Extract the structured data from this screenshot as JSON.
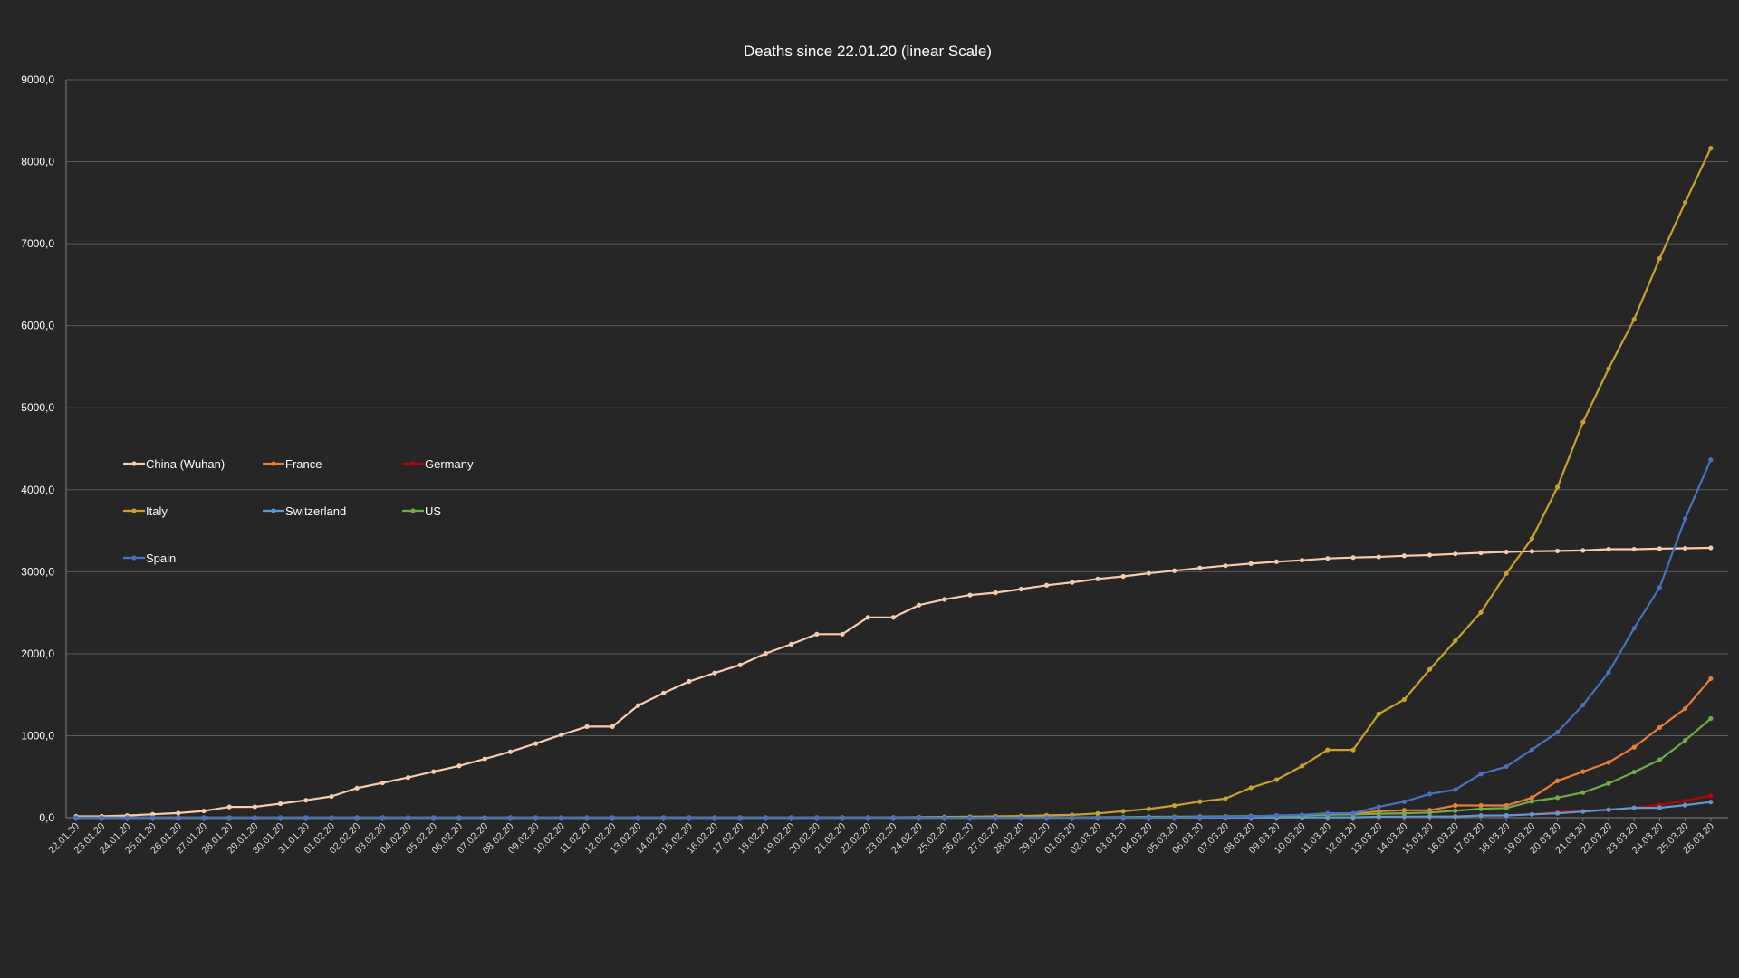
{
  "chart_data": {
    "type": "line",
    "title": "Deaths since 22.01.20 (linear Scale)",
    "xlabel": "",
    "ylabel": "",
    "ylim": [
      0,
      9000
    ],
    "yticks": [
      0,
      1000,
      2000,
      3000,
      4000,
      5000,
      6000,
      7000,
      8000,
      9000
    ],
    "ytick_labels": [
      "0,0",
      "1000,0",
      "2000,0",
      "3000,0",
      "4000,0",
      "5000,0",
      "6000,0",
      "7000,0",
      "8000,0",
      "9000,0"
    ],
    "grid": true,
    "legend_position": "left",
    "background": "#262626",
    "categories": [
      "22.01.20",
      "23.01.20",
      "24.01.20",
      "25.01.20",
      "26.01.20",
      "27.01.20",
      "28.01.20",
      "29.01.20",
      "30.01.20",
      "31.01.20",
      "01.02.20",
      "02.02.20",
      "03.02.20",
      "04.02.20",
      "05.02.20",
      "06.02.20",
      "07.02.20",
      "08.02.20",
      "09.02.20",
      "10.02.20",
      "11.02.20",
      "12.02.20",
      "13.02.20",
      "14.02.20",
      "15.02.20",
      "16.02.20",
      "17.02.20",
      "18.02.20",
      "19.02.20",
      "20.02.20",
      "21.02.20",
      "22.02.20",
      "23.02.20",
      "24.02.20",
      "25.02.20",
      "26.02.20",
      "27.02.20",
      "28.02.20",
      "29.02.20",
      "01.03.20",
      "02.03.20",
      "03.03.20",
      "04.03.20",
      "05.03.20",
      "06.03.20",
      "07.03.20",
      "08.03.20",
      "09.03.20",
      "10.03.20",
      "11.03.20",
      "12.03.20",
      "13.03.20",
      "14.03.20",
      "15.03.20",
      "16.03.20",
      "17.03.20",
      "18.03.20",
      "19.03.20",
      "20.03.20",
      "21.03.20",
      "22.03.20",
      "23.03.20",
      "24.03.20",
      "25.03.20",
      "26.03.20"
    ],
    "series": [
      {
        "name": "China (Wuhan)",
        "color": "#f8cbad",
        "values": [
          17,
          18,
          26,
          42,
          56,
          82,
          131,
          133,
          171,
          213,
          259,
          361,
          425,
          490,
          562,
          632,
          717,
          804,
          904,
          1011,
          1111,
          1111,
          1368,
          1520,
          1662,
          1765,
          1863,
          2003,
          2116,
          2238,
          2238,
          2443,
          2443,
          2593,
          2663,
          2715,
          2744,
          2788,
          2835,
          2870,
          2912,
          2943,
          2981,
          3012,
          3045,
          3073,
          3099,
          3122,
          3140,
          3162,
          3173,
          3180,
          3194,
          3203,
          3217,
          3230,
          3241,
          3249,
          3253,
          3259,
          3274,
          3274,
          3281,
          3285,
          3291
        ]
      },
      {
        "name": "France",
        "color": "#ed7d31",
        "values": [
          0,
          0,
          0,
          0,
          0,
          0,
          0,
          0,
          0,
          0,
          0,
          0,
          0,
          0,
          0,
          0,
          0,
          0,
          0,
          0,
          0,
          0,
          0,
          1,
          1,
          1,
          1,
          1,
          1,
          1,
          1,
          1,
          1,
          1,
          2,
          2,
          2,
          2,
          2,
          2,
          3,
          4,
          4,
          6,
          9,
          11,
          19,
          19,
          33,
          48,
          48,
          79,
          91,
          91,
          149,
          149,
          149,
          244,
          450,
          562,
          674,
          860,
          1100,
          1331,
          1696
        ]
      },
      {
        "name": "Germany",
        "color": "#c00000",
        "values": [
          0,
          0,
          0,
          0,
          0,
          0,
          0,
          0,
          0,
          0,
          0,
          0,
          0,
          0,
          0,
          0,
          0,
          0,
          0,
          0,
          0,
          0,
          0,
          0,
          0,
          0,
          0,
          0,
          0,
          0,
          0,
          0,
          0,
          0,
          0,
          0,
          0,
          0,
          0,
          0,
          0,
          0,
          0,
          0,
          0,
          0,
          0,
          2,
          2,
          3,
          3,
          7,
          9,
          11,
          17,
          24,
          28,
          44,
          67,
          84,
          94,
          123,
          157,
          206,
          267
        ]
      },
      {
        "name": "Italy",
        "color": "#c9a227",
        "values": [
          0,
          0,
          0,
          0,
          0,
          0,
          0,
          0,
          0,
          0,
          0,
          0,
          0,
          0,
          0,
          0,
          0,
          0,
          0,
          0,
          0,
          0,
          0,
          0,
          0,
          0,
          0,
          0,
          0,
          0,
          1,
          2,
          3,
          7,
          10,
          12,
          17,
          21,
          29,
          34,
          52,
          79,
          107,
          148,
          197,
          233,
          366,
          463,
          631,
          827,
          827,
          1266,
          1441,
          1809,
          2158,
          2503,
          2978,
          3405,
          4032,
          4825,
          5476,
          6077,
          6820,
          7503,
          8165
        ]
      },
      {
        "name": "Switzerland",
        "color": "#5b9bd5",
        "values": [
          0,
          0,
          0,
          0,
          0,
          0,
          0,
          0,
          0,
          0,
          0,
          0,
          0,
          0,
          0,
          0,
          0,
          0,
          0,
          0,
          0,
          0,
          0,
          0,
          0,
          0,
          0,
          0,
          0,
          0,
          0,
          0,
          0,
          0,
          0,
          0,
          0,
          0,
          0,
          0,
          0,
          0,
          0,
          1,
          1,
          1,
          2,
          2,
          3,
          4,
          4,
          11,
          13,
          14,
          14,
          27,
          28,
          41,
          54,
          75,
          98,
          120,
          122,
          153,
          191
        ]
      },
      {
        "name": "US",
        "color": "#70ad47",
        "values": [
          0,
          0,
          0,
          0,
          0,
          0,
          0,
          0,
          0,
          0,
          0,
          0,
          0,
          0,
          0,
          0,
          0,
          0,
          0,
          0,
          0,
          0,
          0,
          0,
          0,
          0,
          0,
          0,
          0,
          0,
          0,
          0,
          0,
          0,
          0,
          0,
          0,
          0,
          1,
          1,
          6,
          7,
          11,
          12,
          14,
          17,
          21,
          22,
          28,
          36,
          40,
          47,
          54,
          63,
          85,
          108,
          118,
          200,
          244,
          307,
          417,
          557,
          706,
          942,
          1209
        ]
      },
      {
        "name": "Spain",
        "color": "#4472c4",
        "values": [
          0,
          0,
          0,
          0,
          0,
          0,
          0,
          0,
          0,
          0,
          0,
          0,
          0,
          0,
          0,
          0,
          0,
          0,
          0,
          0,
          0,
          0,
          0,
          0,
          0,
          0,
          0,
          0,
          0,
          0,
          0,
          0,
          0,
          0,
          0,
          0,
          0,
          0,
          0,
          0,
          0,
          1,
          2,
          3,
          5,
          10,
          17,
          28,
          35,
          54,
          55,
          133,
          195,
          289,
          342,
          533,
          623,
          830,
          1043,
          1375,
          1772,
          2311,
          2808,
          3647,
          4365
        ]
      }
    ]
  }
}
